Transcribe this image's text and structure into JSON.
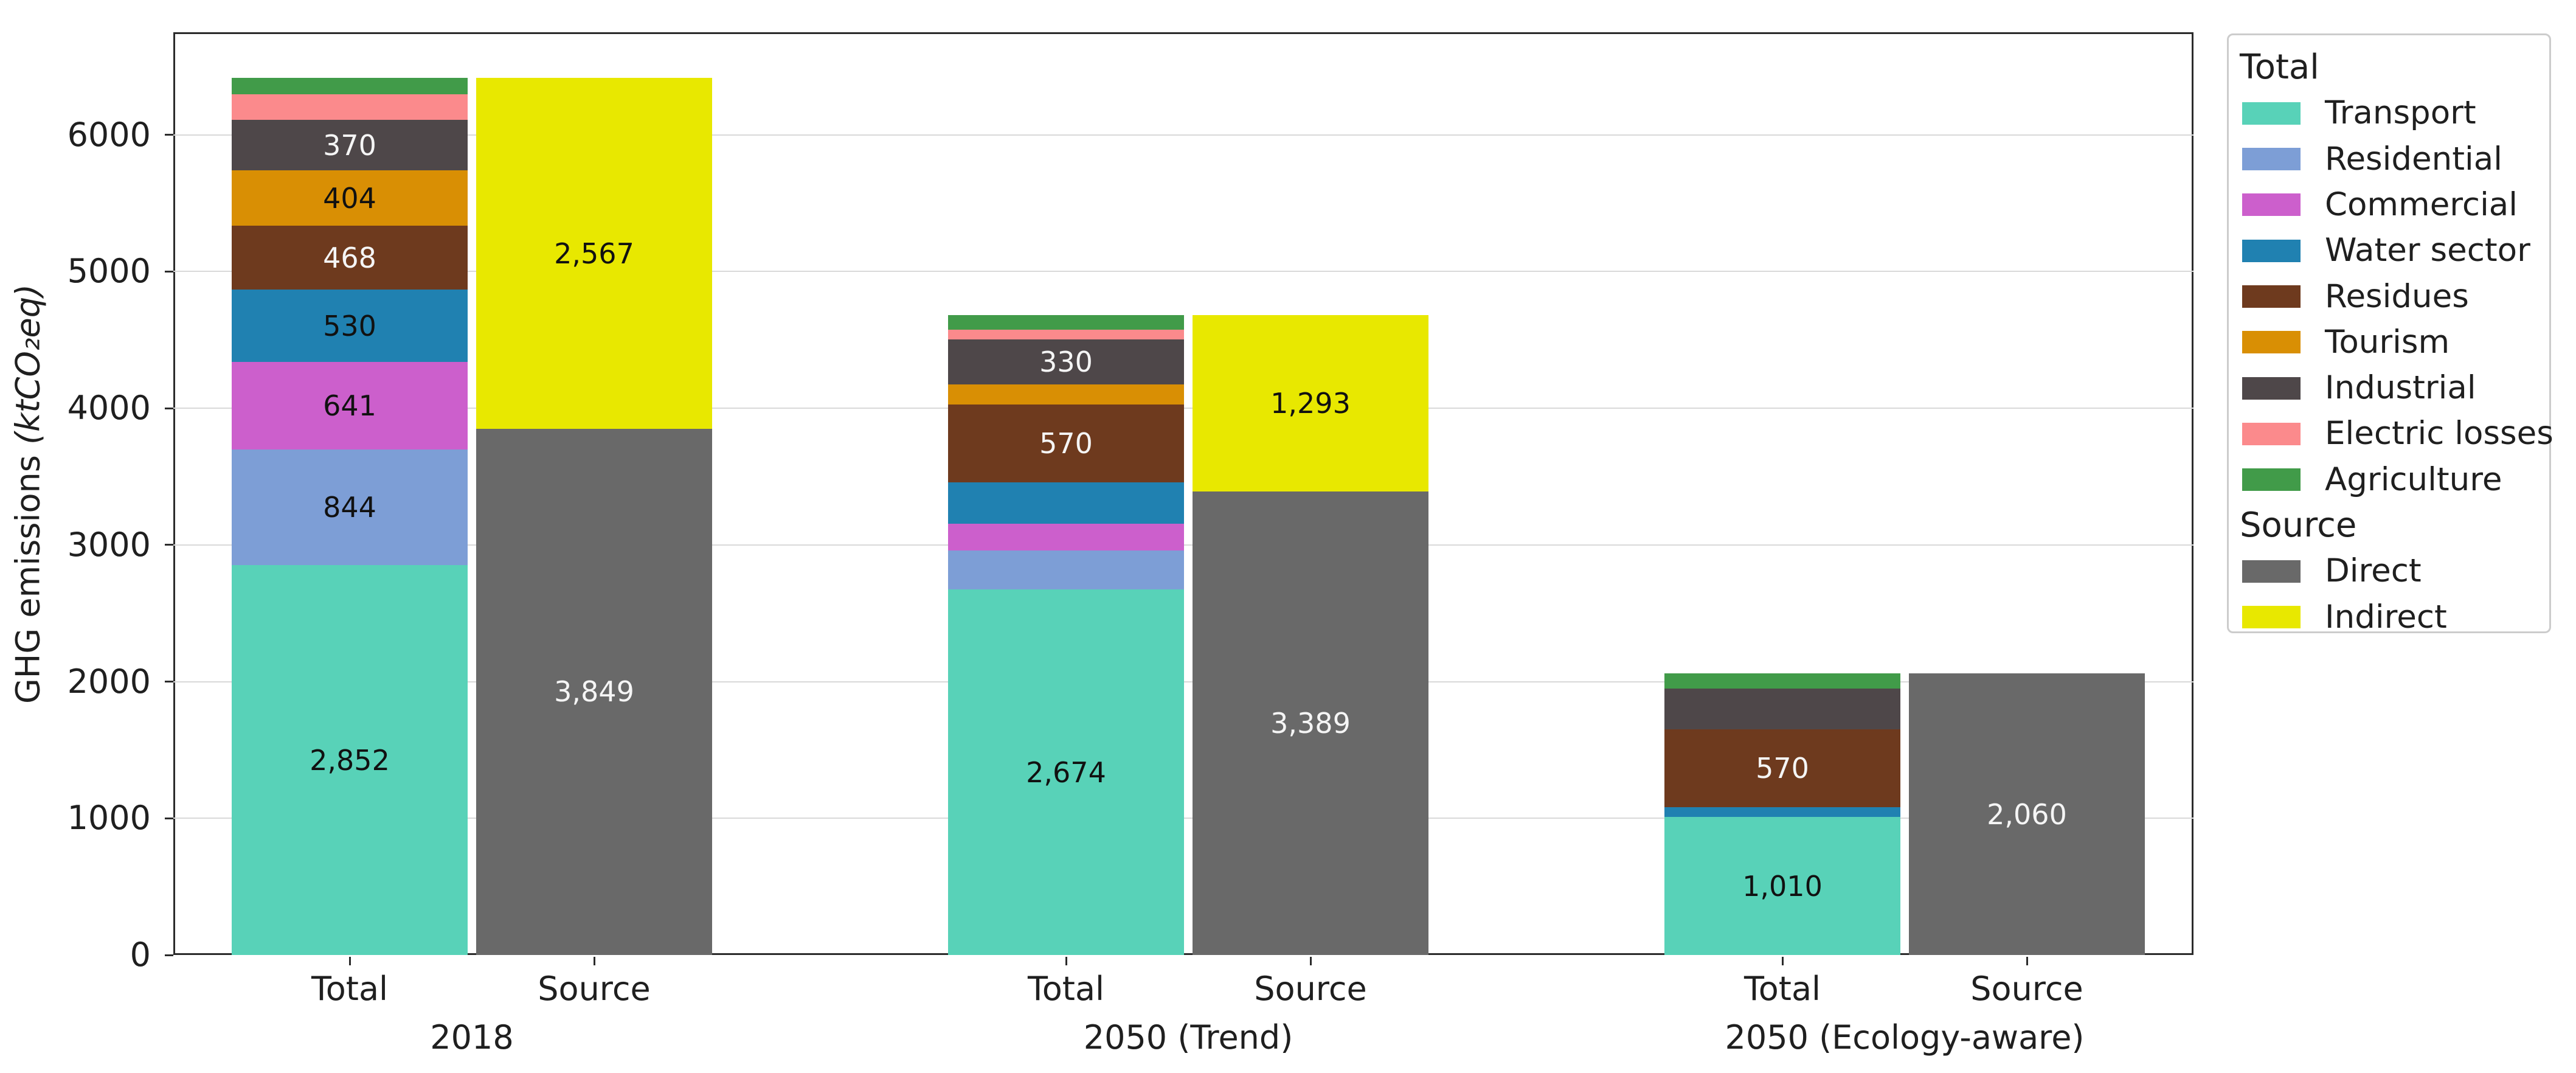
{
  "chart_data": {
    "type": "bar",
    "stacked": true,
    "title": "",
    "xlabel": "",
    "ylabel": "GHG emissions",
    "ylabel_unit": "(ktCO₂eq)",
    "ylim": [
      0,
      6750
    ],
    "ytick_values": [
      0,
      1000,
      2000,
      3000,
      4000,
      5000,
      6000
    ],
    "yticks": [
      "0",
      "1000",
      "2000",
      "3000",
      "4000",
      "5000",
      "6000"
    ],
    "grid": true,
    "legend_position": "right-outside",
    "colors": {
      "Transport": {
        "fill": "#58D2B8",
        "text": "#111111"
      },
      "Residential": {
        "fill": "#7D9ED6",
        "text": "#111111"
      },
      "Commercial": {
        "fill": "#CC5FCC",
        "text": "#111111"
      },
      "Water sector": {
        "fill": "#2081B1",
        "text": "#111111"
      },
      "Residues": {
        "fill": "#6E3A1E",
        "text": "#F5F5F5"
      },
      "Tourism": {
        "fill": "#D98F04",
        "text": "#111111"
      },
      "Industrial": {
        "fill": "#4E4749",
        "text": "#F5F5F5"
      },
      "Electric losses": {
        "fill": "#FB8A8C",
        "text": "#111111"
      },
      "Agriculture": {
        "fill": "#419B49",
        "text": "#111111"
      },
      "Direct": {
        "fill": "#696969",
        "text": "#F5F5F5"
      },
      "Indirect": {
        "fill": "#E8E800",
        "text": "#111111"
      }
    },
    "legend": {
      "sections": [
        {
          "header": "Total",
          "items": [
            "Transport",
            "Residential",
            "Commercial",
            "Water sector",
            "Residues",
            "Tourism",
            "Industrial",
            "Electric losses",
            "Agriculture"
          ]
        },
        {
          "header": "Source",
          "items": [
            "Direct",
            "Indirect"
          ]
        }
      ]
    },
    "groups": [
      {
        "label": "2018",
        "bars": [
          {
            "label": "Total",
            "segments": [
              {
                "name": "Transport",
                "value": 2852,
                "label": "2,852"
              },
              {
                "name": "Residential",
                "value": 844,
                "label": "844"
              },
              {
                "name": "Commercial",
                "value": 641,
                "label": "641"
              },
              {
                "name": "Water sector",
                "value": 530,
                "label": "530"
              },
              {
                "name": "Residues",
                "value": 468,
                "label": "468"
              },
              {
                "name": "Tourism",
                "value": 404,
                "label": "404"
              },
              {
                "name": "Industrial",
                "value": 370,
                "label": "370"
              },
              {
                "name": "Electric losses",
                "value": 187
              },
              {
                "name": "Agriculture",
                "value": 120
              }
            ]
          },
          {
            "label": "Source",
            "segments": [
              {
                "name": "Direct",
                "value": 3849,
                "label": "3,849"
              },
              {
                "name": "Indirect",
                "value": 2567,
                "label": "2,567"
              }
            ]
          }
        ]
      },
      {
        "label": "2050 (Trend)",
        "bars": [
          {
            "label": "Total",
            "segments": [
              {
                "name": "Transport",
                "value": 2674,
                "label": "2,674"
              },
              {
                "name": "Residential",
                "value": 285
              },
              {
                "name": "Commercial",
                "value": 195
              },
              {
                "name": "Water sector",
                "value": 305
              },
              {
                "name": "Residues",
                "value": 570,
                "label": "570"
              },
              {
                "name": "Tourism",
                "value": 145
              },
              {
                "name": "Industrial",
                "value": 330,
                "label": "330"
              },
              {
                "name": "Electric losses",
                "value": 70
              },
              {
                "name": "Agriculture",
                "value": 108
              }
            ]
          },
          {
            "label": "Source",
            "segments": [
              {
                "name": "Direct",
                "value": 3389,
                "label": "3,389"
              },
              {
                "name": "Indirect",
                "value": 1293,
                "label": "1,293"
              }
            ]
          }
        ]
      },
      {
        "label": "2050 (Ecology-aware)",
        "bars": [
          {
            "label": "Total",
            "segments": [
              {
                "name": "Transport",
                "value": 1010,
                "label": "1,010"
              },
              {
                "name": "Water sector",
                "value": 70
              },
              {
                "name": "Residues",
                "value": 570,
                "label": "570"
              },
              {
                "name": "Industrial",
                "value": 300
              },
              {
                "name": "Agriculture",
                "value": 110
              }
            ]
          },
          {
            "label": "Source",
            "segments": [
              {
                "name": "Direct",
                "value": 2060,
                "label": "2,060"
              }
            ]
          }
        ]
      }
    ]
  }
}
